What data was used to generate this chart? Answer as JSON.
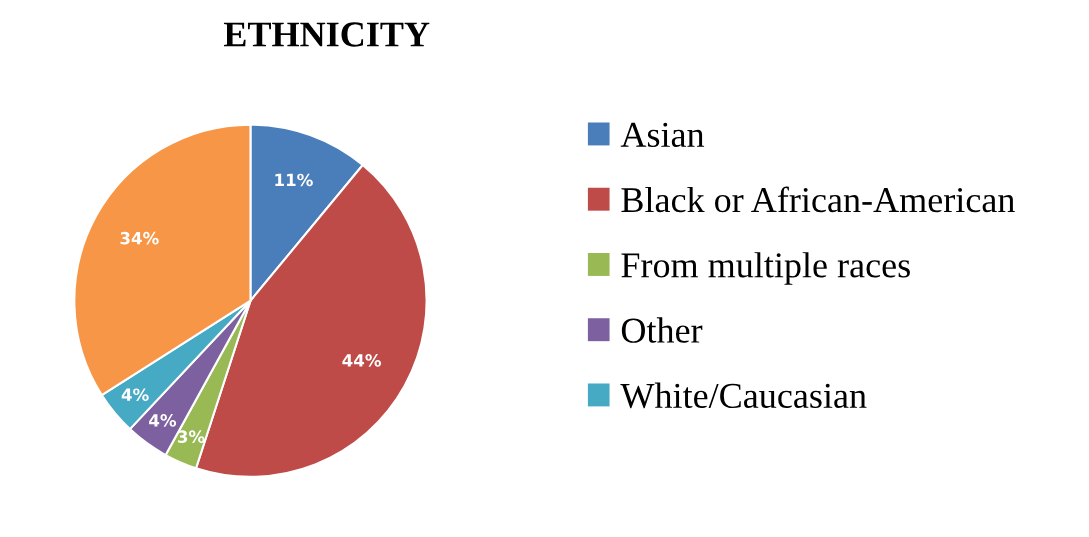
{
  "chart_data": {
    "type": "pie",
    "title": "ETHNICITY",
    "categories": [
      "Asian",
      "Black or African-American",
      "From multiple races",
      "Other",
      "White/Caucasian",
      null
    ],
    "values": [
      11,
      44,
      3,
      4,
      4,
      34
    ],
    "colors": [
      "#4a7ebb",
      "#be4b48",
      "#98b954",
      "#7d60a0",
      "#46aac5",
      "#f79646"
    ],
    "value_labels": [
      "11%",
      "44%",
      "3%",
      "4%",
      "4%",
      "34%"
    ],
    "legend": "right"
  }
}
